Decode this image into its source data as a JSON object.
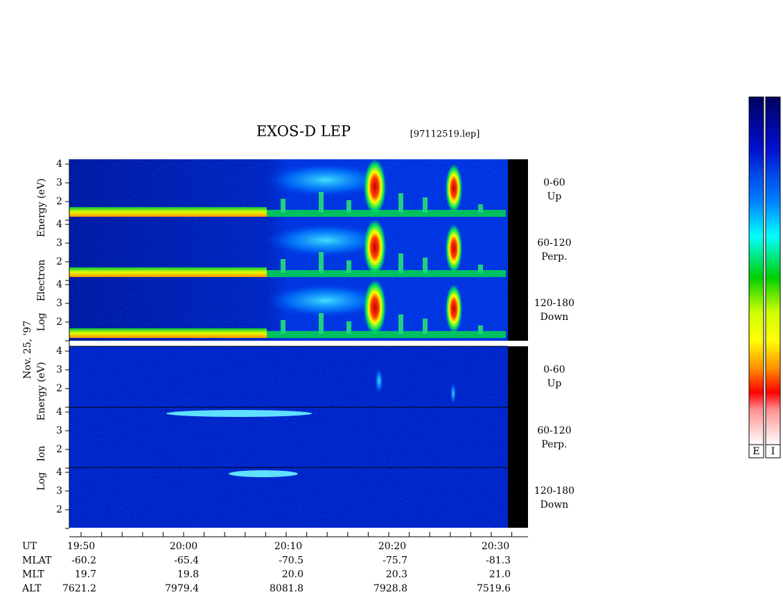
{
  "title": "EXOS-D LEP",
  "file": "[97112519.lep]",
  "electron_axis_label": [
    "Log",
    "Electron",
    "Energy (eV)"
  ],
  "ion_axis_label": [
    "Log",
    "Ion",
    "Energy (eV)"
  ],
  "date": "Nov. 25, '97",
  "energy_ticks": [
    "4",
    "3",
    "2"
  ],
  "pitch_angle_bins": [
    {
      "range": "0-60",
      "direction": "Up"
    },
    {
      "range": "60-120",
      "direction": "Perp."
    },
    {
      "range": "120-180",
      "direction": "Down"
    }
  ],
  "colorbar_labels": [
    "E",
    "I"
  ],
  "ephemeris": {
    "rows": [
      {
        "name": "UT",
        "values": [
          "19:50",
          "20:00",
          "20:10",
          "20:20",
          "20:30"
        ]
      },
      {
        "name": "MLAT",
        "values": [
          "-60.2",
          "-65.4",
          "-70.5",
          "-75.7",
          "-81.3"
        ]
      },
      {
        "name": "MLT",
        "values": [
          "19.7",
          "19.8",
          "20.0",
          "20.3",
          "21.0"
        ]
      },
      {
        "name": "ALT",
        "values": [
          "7621.2",
          "7979.4",
          "8081.8",
          "7928.8",
          "7519.6"
        ]
      }
    ]
  }
}
